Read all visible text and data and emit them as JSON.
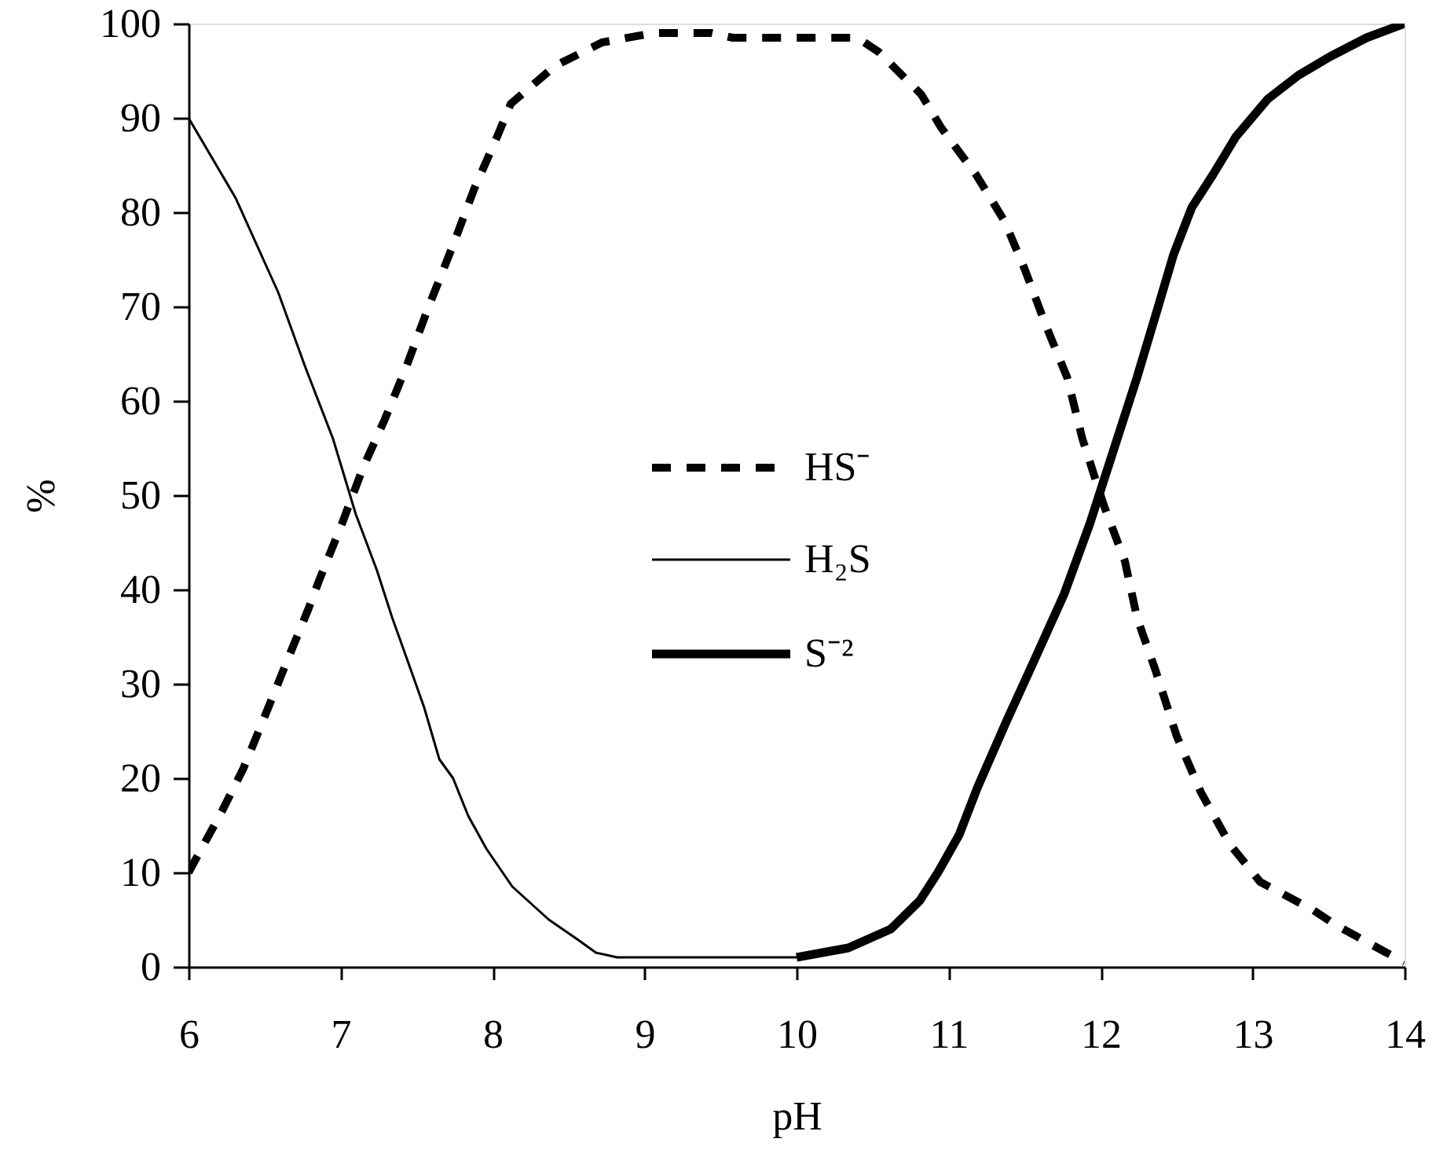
{
  "chart_data": {
    "type": "line",
    "xlabel": "pH",
    "ylabel": "%",
    "xlim": [
      6,
      14
    ],
    "xticks": [
      6,
      7,
      8,
      9,
      10,
      11,
      12,
      13,
      14
    ],
    "ylim": [
      0,
      100
    ],
    "yticks": [
      0,
      10,
      20,
      30,
      40,
      50,
      60,
      70,
      80,
      90,
      100
    ],
    "legend": "center",
    "grid": false,
    "series": [
      {
        "name": "HS⁻",
        "color": "#000000",
        "line_style": "dashed",
        "x": [
          6,
          6.22,
          6.36,
          6.5,
          6.65,
          6.79,
          6.86,
          7.01,
          7.15,
          7.29,
          7.43,
          7.58,
          7.74,
          7.88,
          8.03,
          8.12,
          8.41,
          8.72,
          9.06,
          9.44,
          9.58,
          10,
          10.4,
          10.54,
          10.82,
          10.95,
          11.18,
          11.37,
          11.5,
          11.64,
          11.78,
          11.88,
          12.02,
          12.16,
          12.24,
          12.36,
          12.5,
          12.66,
          12.85,
          13.05,
          13.4,
          13.54,
          13.88,
          14
        ],
        "values": [
          10,
          16.5,
          21,
          26.5,
          32.5,
          38,
          41,
          47,
          53,
          58,
          63.5,
          70,
          76.5,
          82.5,
          88,
          91.5,
          95.5,
          98,
          99,
          99,
          98.5,
          98.5,
          98.5,
          97,
          92.5,
          89,
          84,
          79,
          74,
          68,
          62.5,
          56,
          49,
          43,
          37,
          31.5,
          24.5,
          18.5,
          13,
          9,
          6,
          4.5,
          1.5,
          0.5
        ]
      },
      {
        "name": "H₂S",
        "color": "#000000",
        "line_style": "solid",
        "x": [
          6,
          6.31,
          6.59,
          6.77,
          6.95,
          7.1,
          7.24,
          7.34,
          7.44,
          7.55,
          7.65,
          7.74,
          7.84,
          7.96,
          8.13,
          8.37,
          8.55,
          8.68,
          8.82,
          9,
          9.5,
          10
        ],
        "values": [
          90,
          81.5,
          71.5,
          63.5,
          56,
          48,
          42,
          37,
          32.5,
          27.5,
          22,
          20,
          16,
          12.5,
          8.5,
          5,
          3,
          1.5,
          1,
          1,
          1,
          1
        ]
      },
      {
        "name": "S⁻²",
        "color": "#000000",
        "line_style": "solid",
        "x": [
          10,
          10.34,
          10.41,
          10.62,
          10.81,
          10.93,
          11.07,
          11.19,
          11.38,
          11.55,
          11.76,
          11.93,
          12.1,
          12.24,
          12.37,
          12.48,
          12.6,
          12.74,
          12.89,
          13.1,
          13.3,
          13.51,
          13.75,
          14
        ],
        "values": [
          1,
          2,
          2.5,
          4,
          7,
          10,
          14,
          19,
          26,
          32,
          39.5,
          47,
          55.5,
          62.5,
          69.5,
          75.5,
          80.5,
          84,
          88,
          92,
          94.5,
          96.5,
          98.5,
          100
        ]
      }
    ]
  }
}
